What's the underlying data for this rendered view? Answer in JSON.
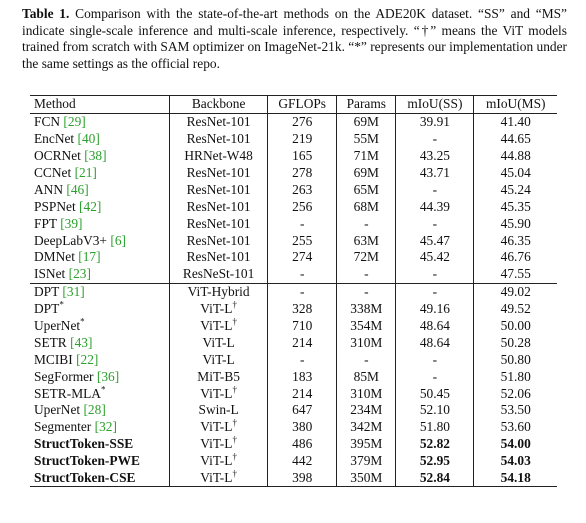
{
  "caption": {
    "label": "Table 1.",
    "text": "Comparison with the state-of-the-art methods on the ADE20K dataset. “SS” and “MS” indicate single-scale inference and multi-scale inference, respectively. “†” means the ViT models trained from scratch with SAM optimizer on ImageNet-21k. “*” represents our implementation under the same settings as the official repo."
  },
  "table": {
    "header": [
      "Method",
      "Backbone",
      "GFLOPs",
      "Params",
      "mIoU(SS)",
      "mIoU(MS)"
    ],
    "groups": [
      {
        "rows": [
          {
            "method": "FCN",
            "cite": "[29]",
            "backbone": "ResNet-101",
            "gflops": "276",
            "params": "69M",
            "ss": "39.91",
            "ms": "41.40"
          },
          {
            "method": "EncNet",
            "cite": "[40]",
            "backbone": "ResNet-101",
            "gflops": "219",
            "params": "55M",
            "ss": "-",
            "ms": "44.65"
          },
          {
            "method": "OCRNet",
            "cite": "[38]",
            "backbone": "HRNet-W48",
            "gflops": "165",
            "params": "71M",
            "ss": "43.25",
            "ms": "44.88"
          },
          {
            "method": "CCNet",
            "cite": "[21]",
            "backbone": "ResNet-101",
            "gflops": "278",
            "params": "69M",
            "ss": "43.71",
            "ms": "45.04"
          },
          {
            "method": "ANN",
            "cite": "[46]",
            "backbone": "ResNet-101",
            "gflops": "263",
            "params": "65M",
            "ss": "-",
            "ms": "45.24"
          },
          {
            "method": "PSPNet",
            "cite": "[42]",
            "backbone": "ResNet-101",
            "gflops": "256",
            "params": "68M",
            "ss": "44.39",
            "ms": "45.35"
          },
          {
            "method": "FPT",
            "cite": "[39]",
            "backbone": "ResNet-101",
            "gflops": "-",
            "params": "-",
            "ss": "-",
            "ms": "45.90"
          },
          {
            "method": "DeepLabV3+",
            "cite": "[6]",
            "backbone": "ResNet-101",
            "gflops": "255",
            "params": "63M",
            "ss": "45.47",
            "ms": "46.35"
          },
          {
            "method": "DMNet",
            "cite": "[17]",
            "backbone": "ResNet-101",
            "gflops": "274",
            "params": "72M",
            "ss": "45.42",
            "ms": "46.76"
          },
          {
            "method": "ISNet",
            "cite": "[23]",
            "backbone": "ResNeSt-101",
            "gflops": "-",
            "params": "-",
            "ss": "-",
            "ms": "47.55"
          }
        ]
      },
      {
        "rows": [
          {
            "method": "DPT",
            "cite": "[31]",
            "backbone": "ViT-Hybrid",
            "gflops": "-",
            "params": "-",
            "ss": "-",
            "ms": "49.02"
          },
          {
            "method": "DPT",
            "sup": "*",
            "backbone": "ViT-L",
            "backbone_sup": "†",
            "gflops": "328",
            "params": "338M",
            "ss": "49.16",
            "ms": "49.52"
          },
          {
            "method": "UperNet",
            "sup": "*",
            "backbone": "ViT-L",
            "backbone_sup": "†",
            "gflops": "710",
            "params": "354M",
            "ss": "48.64",
            "ms": "50.00"
          },
          {
            "method": "SETR",
            "cite": "[43]",
            "backbone": "ViT-L",
            "gflops": "214",
            "params": "310M",
            "ss": "48.64",
            "ms": "50.28"
          },
          {
            "method": "MCIBI",
            "cite": "[22]",
            "backbone": "ViT-L",
            "gflops": "-",
            "params": "-",
            "ss": "-",
            "ms": "50.80"
          },
          {
            "method": "SegFormer",
            "cite": "[36]",
            "backbone": "MiT-B5",
            "gflops": "183",
            "params": "85M",
            "ss": "-",
            "ms": "51.80"
          },
          {
            "method": "SETR-MLA",
            "sup": "*",
            "backbone": "ViT-L",
            "backbone_sup": "†",
            "gflops": "214",
            "params": "310M",
            "ss": "50.45",
            "ms": "52.06"
          },
          {
            "method": "UperNet",
            "cite": "[28]",
            "backbone": "Swin-L",
            "gflops": "647",
            "params": "234M",
            "ss": "52.10",
            "ms": "53.50"
          },
          {
            "method": "Segmenter",
            "cite": "[32]",
            "backbone": "ViT-L",
            "backbone_sup": "†",
            "gflops": "380",
            "params": "342M",
            "ss": "51.80",
            "ms": "53.60"
          },
          {
            "method": "StructToken-SSE",
            "backbone": "ViT-L",
            "backbone_sup": "†",
            "gflops": "486",
            "params": "395M",
            "ss": "52.82",
            "ms": "54.00",
            "bold": true
          },
          {
            "method": "StructToken-PWE",
            "backbone": "ViT-L",
            "backbone_sup": "†",
            "gflops": "442",
            "params": "379M",
            "ss": "52.95",
            "ms": "54.03",
            "bold": true
          },
          {
            "method": "StructToken-CSE",
            "backbone": "ViT-L",
            "backbone_sup": "†",
            "gflops": "398",
            "params": "350M",
            "ss": "52.84",
            "ms": "54.18",
            "bold": true
          }
        ]
      }
    ]
  }
}
